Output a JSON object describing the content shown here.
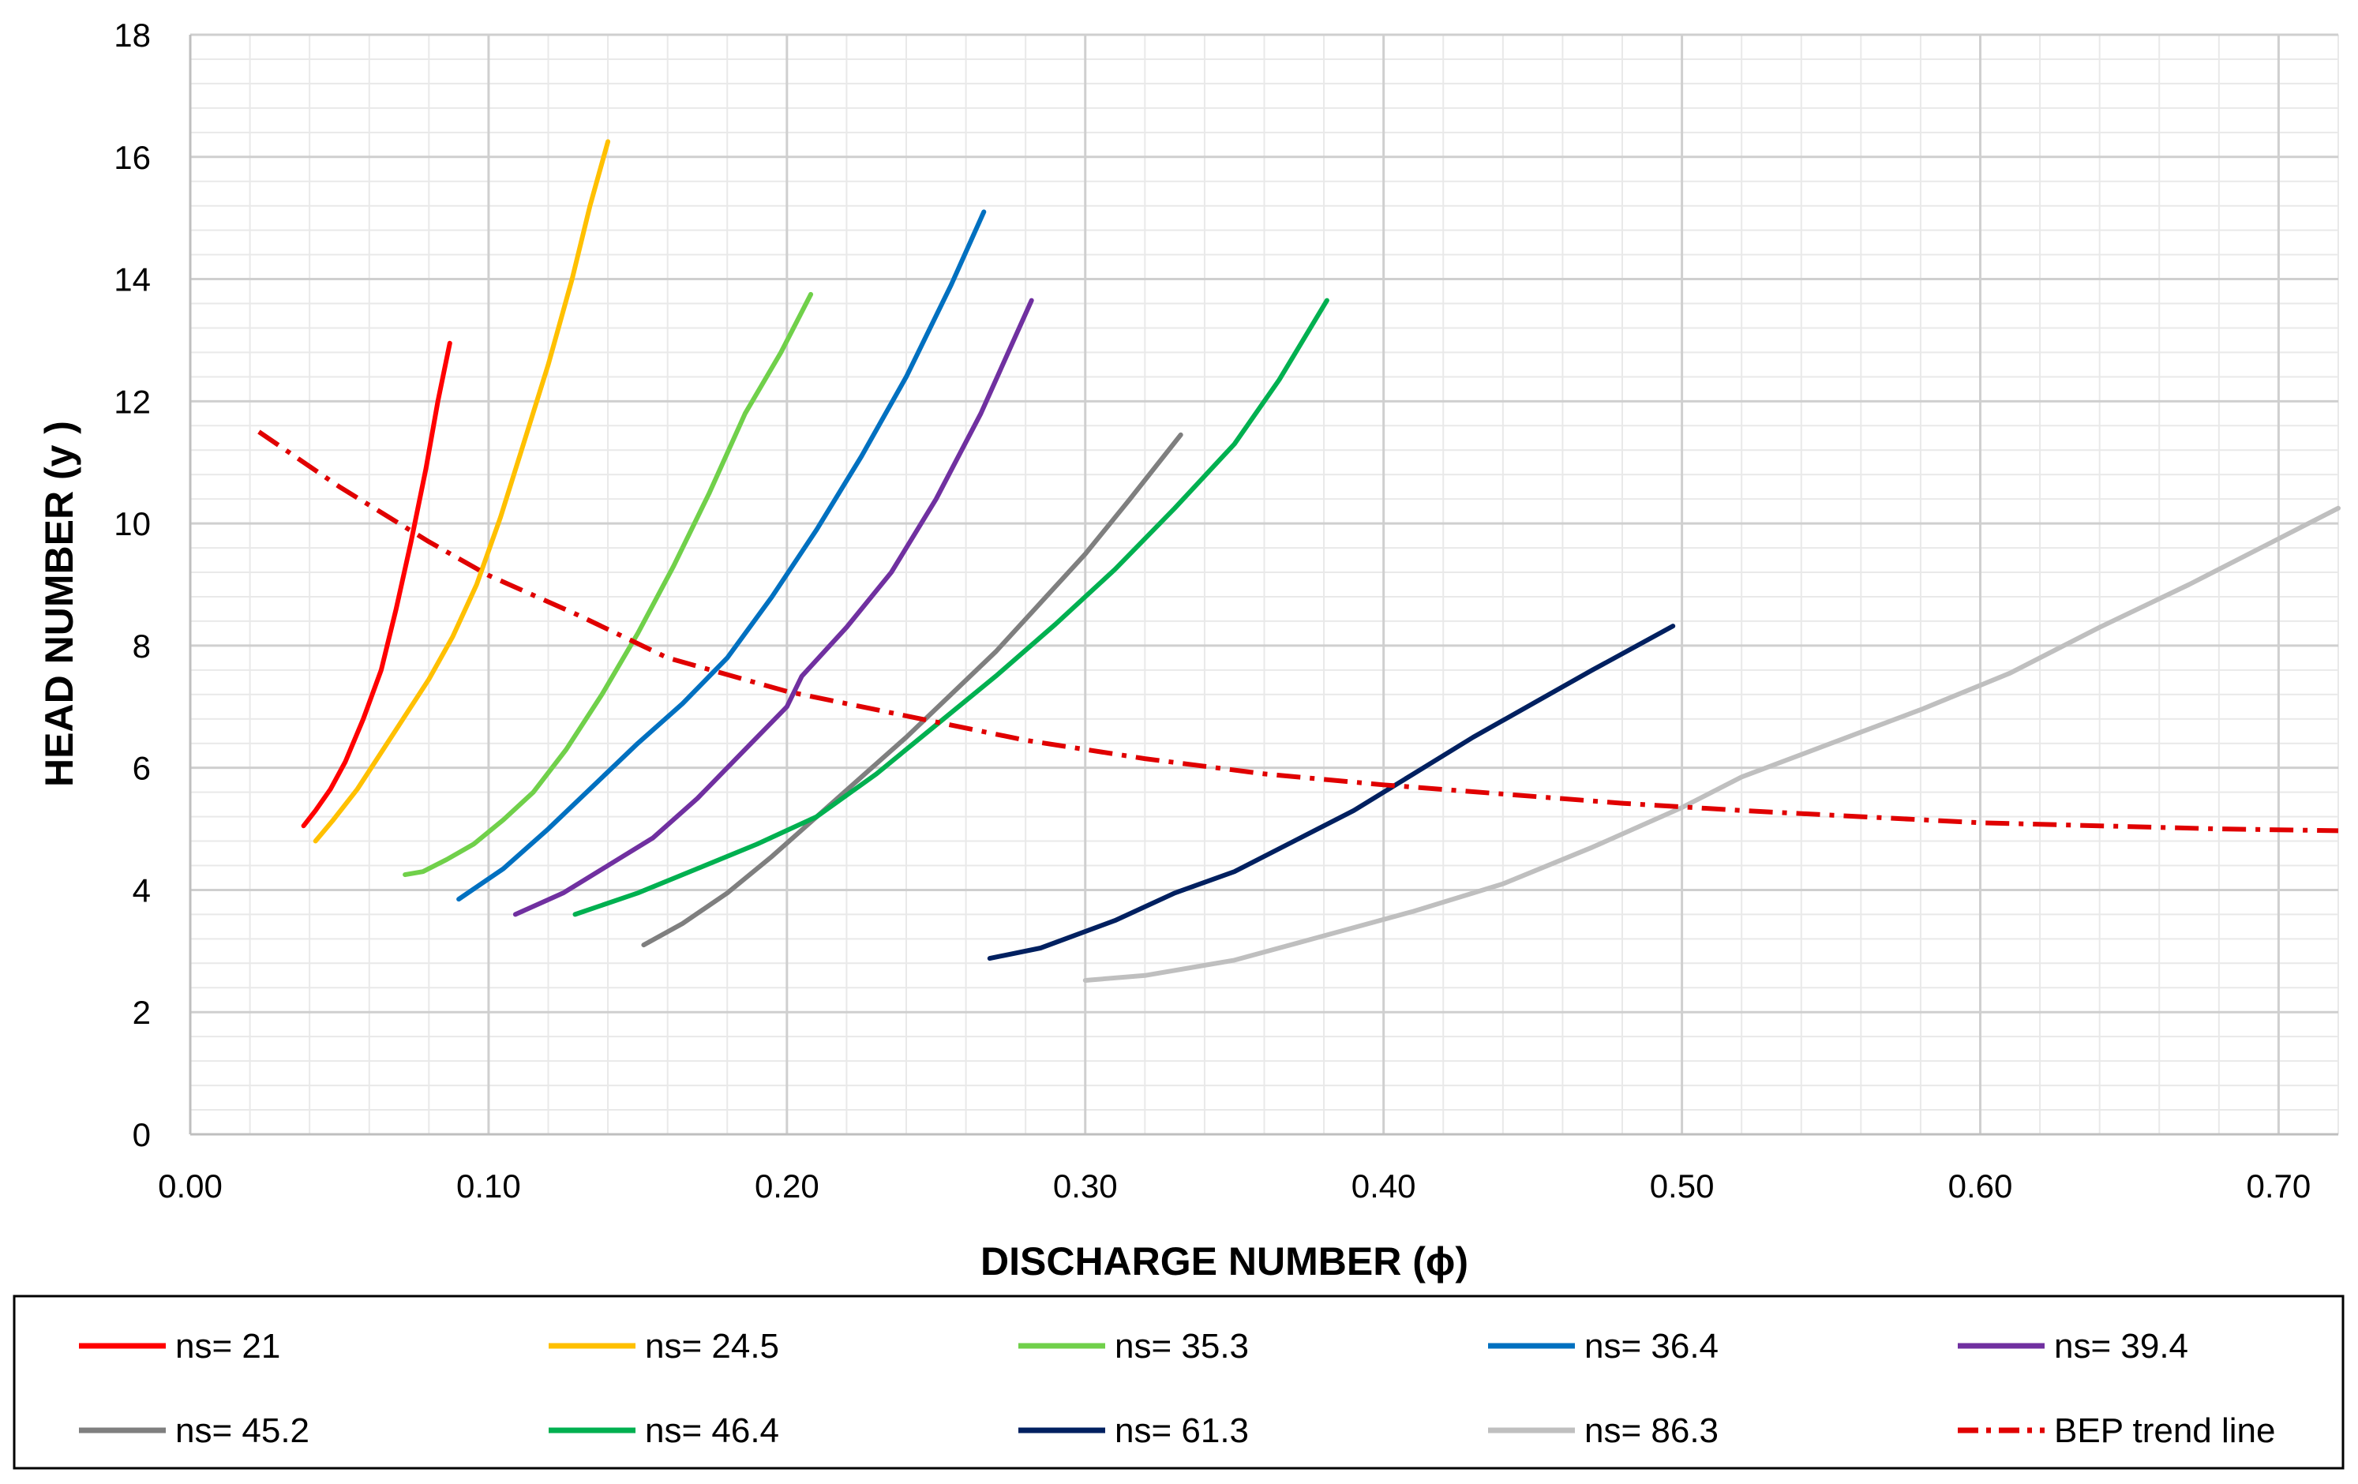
{
  "chart_data": {
    "type": "line",
    "title": "",
    "xlabel": "DISCHARGE NUMBER (ϕ)",
    "ylabel": "HEAD NUMBER (y )",
    "xlim": [
      0,
      0.72
    ],
    "ylim": [
      0,
      18
    ],
    "x_ticks": [
      "0.00",
      "0.10",
      "0.20",
      "0.30",
      "0.40",
      "0.50",
      "0.60",
      "0.70"
    ],
    "y_ticks": [
      "0",
      "2",
      "4",
      "6",
      "8",
      "10",
      "12",
      "14",
      "16",
      "18"
    ],
    "x_tick_values": [
      0,
      0.1,
      0.2,
      0.3,
      0.4,
      0.5,
      0.6,
      0.7
    ],
    "y_tick_values": [
      0,
      2,
      4,
      6,
      8,
      10,
      12,
      14,
      16,
      18
    ],
    "grid": true,
    "legend_position": "bottom",
    "series": [
      {
        "name": "ns= 21",
        "color": "#ff0000",
        "dash": "solid",
        "x": [
          0.038,
          0.042,
          0.047,
          0.052,
          0.058,
          0.064,
          0.069,
          0.074,
          0.079,
          0.083,
          0.087
        ],
        "y": [
          5.05,
          5.3,
          5.65,
          6.1,
          6.8,
          7.6,
          8.6,
          9.7,
          10.9,
          12.0,
          12.95
        ]
      },
      {
        "name": "ns= 24.5",
        "color": "#ffc000",
        "dash": "solid",
        "x": [
          0.042,
          0.048,
          0.056,
          0.064,
          0.072,
          0.08,
          0.088,
          0.096,
          0.104,
          0.112,
          0.12,
          0.128,
          0.134,
          0.14
        ],
        "y": [
          4.8,
          5.15,
          5.65,
          6.25,
          6.85,
          7.45,
          8.15,
          9.0,
          10.1,
          11.35,
          12.6,
          14.0,
          15.2,
          16.25
        ]
      },
      {
        "name": "ns= 35.3",
        "color": "#70d04a",
        "dash": "solid",
        "x": [
          0.072,
          0.078,
          0.086,
          0.095,
          0.105,
          0.115,
          0.126,
          0.138,
          0.15,
          0.162,
          0.174,
          0.186,
          0.198,
          0.208
        ],
        "y": [
          4.25,
          4.3,
          4.5,
          4.75,
          5.15,
          5.6,
          6.3,
          7.2,
          8.2,
          9.3,
          10.5,
          11.8,
          12.8,
          13.75
        ]
      },
      {
        "name": "ns= 36.4",
        "color": "#0070c0",
        "dash": "solid",
        "x": [
          0.09,
          0.105,
          0.12,
          0.135,
          0.15,
          0.165,
          0.18,
          0.195,
          0.21,
          0.225,
          0.24,
          0.255,
          0.266
        ],
        "y": [
          3.85,
          4.35,
          5.0,
          5.7,
          6.4,
          7.05,
          7.8,
          8.8,
          9.9,
          11.1,
          12.4,
          13.9,
          15.1
        ]
      },
      {
        "name": "ns= 39.4",
        "color": "#7030a0",
        "dash": "solid",
        "x": [
          0.109,
          0.125,
          0.14,
          0.155,
          0.17,
          0.185,
          0.2,
          0.205,
          0.22,
          0.235,
          0.25,
          0.265,
          0.282
        ],
        "y": [
          3.6,
          3.95,
          4.4,
          4.85,
          5.5,
          6.25,
          7.0,
          7.5,
          8.3,
          9.2,
          10.4,
          11.8,
          13.65
        ]
      },
      {
        "name": "ns= 45.2",
        "color": "#7f7f7f",
        "dash": "solid",
        "x": [
          0.152,
          0.165,
          0.18,
          0.195,
          0.21,
          0.225,
          0.24,
          0.255,
          0.27,
          0.285,
          0.3,
          0.315,
          0.332
        ],
        "y": [
          3.1,
          3.45,
          3.95,
          4.55,
          5.2,
          5.85,
          6.5,
          7.2,
          7.9,
          8.7,
          9.5,
          10.4,
          11.45
        ]
      },
      {
        "name": "ns= 46.4",
        "color": "#00b050",
        "dash": "solid",
        "x": [
          0.129,
          0.15,
          0.17,
          0.19,
          0.21,
          0.23,
          0.25,
          0.27,
          0.29,
          0.31,
          0.33,
          0.35,
          0.365,
          0.381
        ],
        "y": [
          3.6,
          3.95,
          4.35,
          4.75,
          5.2,
          5.9,
          6.7,
          7.5,
          8.35,
          9.25,
          10.25,
          11.3,
          12.35,
          13.65
        ]
      },
      {
        "name": "ns= 61.3",
        "color": "#002060",
        "dash": "solid",
        "x": [
          0.268,
          0.285,
          0.31,
          0.33,
          0.35,
          0.37,
          0.39,
          0.41,
          0.43,
          0.45,
          0.47,
          0.485,
          0.497
        ],
        "y": [
          2.88,
          3.05,
          3.5,
          3.95,
          4.3,
          4.8,
          5.3,
          5.9,
          6.5,
          7.05,
          7.6,
          8.0,
          8.32
        ]
      },
      {
        "name": "ns= 86.3",
        "color": "#bfbfbf",
        "dash": "solid",
        "x": [
          0.3,
          0.32,
          0.35,
          0.38,
          0.41,
          0.44,
          0.47,
          0.5,
          0.52,
          0.55,
          0.58,
          0.61,
          0.64,
          0.67,
          0.7,
          0.72
        ],
        "y": [
          2.52,
          2.6,
          2.85,
          3.25,
          3.65,
          4.1,
          4.7,
          5.35,
          5.85,
          6.4,
          6.95,
          7.55,
          8.3,
          9.0,
          9.75,
          10.25
        ]
      },
      {
        "name": "BEP trend line",
        "color": "#e00000",
        "dash": "dashdot",
        "x": [
          0.023,
          0.05,
          0.08,
          0.1,
          0.13,
          0.16,
          0.2,
          0.24,
          0.28,
          0.32,
          0.36,
          0.4,
          0.44,
          0.48,
          0.52,
          0.56,
          0.6,
          0.64,
          0.68,
          0.72
        ],
        "y": [
          11.5,
          10.6,
          9.7,
          9.15,
          8.5,
          7.8,
          7.25,
          6.85,
          6.45,
          6.15,
          5.9,
          5.72,
          5.57,
          5.42,
          5.3,
          5.2,
          5.1,
          5.05,
          5.0,
          4.97
        ]
      }
    ]
  }
}
